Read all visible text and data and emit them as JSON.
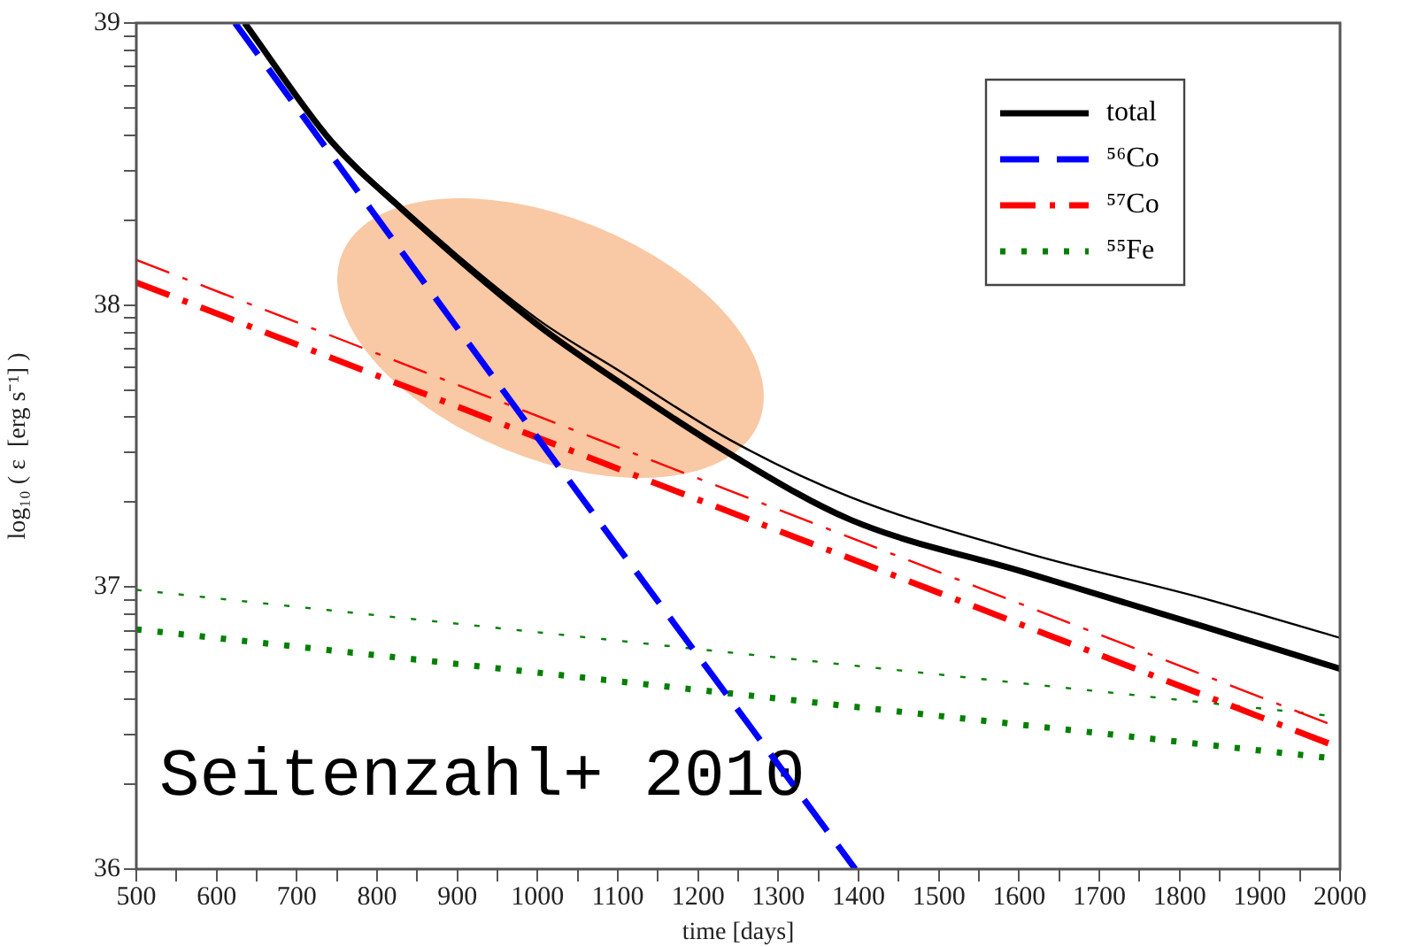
{
  "chart_data": {
    "type": "line",
    "xlabel": "time [days]",
    "ylabel": "log₁₀ ( ε  [erg s⁻¹] )",
    "xlim": [
      500,
      2000
    ],
    "xticks": [
      500,
      {
        "value": 550,
        "label": null
      },
      600,
      {
        "value": 650,
        "label": null
      },
      700,
      {
        "value": 750,
        "label": null
      },
      800,
      {
        "value": 850,
        "label": null
      },
      900,
      {
        "value": 950,
        "label": null
      },
      1000,
      {
        "value": 1050,
        "label": null
      },
      1100,
      {
        "value": 1150,
        "label": null
      },
      1200,
      {
        "value": 1250,
        "label": null
      },
      1300,
      {
        "value": 1350,
        "label": null
      },
      1400,
      {
        "value": 1450,
        "label": null
      },
      1500,
      {
        "value": 1550,
        "label": null
      },
      1600,
      {
        "value": 1650,
        "label": null
      },
      1700,
      {
        "value": 1750,
        "label": null
      },
      1800,
      {
        "value": 1850,
        "label": null
      },
      1900,
      {
        "value": 1950,
        "label": null
      },
      2000
    ],
    "ylim": [
      36,
      39
    ],
    "yticks": [
      36,
      {
        "value": 36.301,
        "label": null
      },
      {
        "value": 36.477,
        "label": null
      },
      {
        "value": 36.602,
        "label": null
      },
      {
        "value": 36.699,
        "label": null
      },
      {
        "value": 36.778,
        "label": null
      },
      {
        "value": 36.845,
        "label": null
      },
      {
        "value": 36.903,
        "label": null
      },
      {
        "value": 36.954,
        "label": null
      },
      37,
      {
        "value": 37.301,
        "label": null
      },
      {
        "value": 37.477,
        "label": null
      },
      {
        "value": 37.602,
        "label": null
      },
      {
        "value": 37.699,
        "label": null
      },
      {
        "value": 37.778,
        "label": null
      },
      {
        "value": 37.845,
        "label": null
      },
      {
        "value": 37.903,
        "label": null
      },
      {
        "value": 37.954,
        "label": null
      },
      38,
      {
        "value": 38.301,
        "label": null
      },
      {
        "value": 38.477,
        "label": null
      },
      {
        "value": 38.602,
        "label": null
      },
      {
        "value": 38.699,
        "label": null
      },
      {
        "value": 38.778,
        "label": null
      },
      {
        "value": 38.845,
        "label": null
      },
      {
        "value": 38.903,
        "label": null
      },
      {
        "value": 38.954,
        "label": null
      },
      39
    ],
    "legend": "top right",
    "marker": "none",
    "series": [
      {
        "name": "total",
        "color": "#000000",
        "line_style": "solid",
        "x": [
          635,
          743,
          831,
          1000,
          1100,
          1241,
          1389,
          1610,
          1830,
          2000
        ],
        "values": [
          39,
          38.58,
          38.34,
          37.93,
          37.73,
          37.47,
          37.24,
          37.05,
          36.86,
          36.71
        ]
      },
      {
        "name": "⁵⁶Co",
        "color": "#0000ff",
        "line_style": "dashed",
        "x": [
          623,
          1000,
          1396
        ],
        "values": [
          39,
          37.53,
          36
        ]
      },
      {
        "name": "⁵⁷Co",
        "color": "#ff0000",
        "line_style": "dashdot",
        "x": [
          500,
          2000
        ],
        "values": [
          38.08,
          36.43
        ]
      },
      {
        "name": "⁵⁵Fe",
        "color": "#008000",
        "line_style": "dotted",
        "x": [
          500,
          2000
        ],
        "values": [
          36.85,
          36.39
        ]
      },
      {
        "color": "#000000",
        "line_style": "solid",
        "x": [
          635,
          743,
          831,
          1000,
          1100,
          1241,
          1389,
          1610,
          1830,
          2000
        ],
        "values": [
          39,
          38.59,
          38.35,
          37.95,
          37.77,
          37.52,
          37.32,
          37.12,
          36.96,
          36.82
        ]
      },
      {
        "color": "#ff0000",
        "line_style": "dashdot",
        "x": [
          500,
          2000
        ],
        "values": [
          38.16,
          36.5
        ]
      },
      {
        "color": "#008000",
        "line_style": "dotted",
        "x": [
          500,
          2000
        ],
        "values": [
          36.99,
          36.54
        ]
      }
    ],
    "annotations": [
      "Seitenzahl+ 2010"
    ]
  }
}
